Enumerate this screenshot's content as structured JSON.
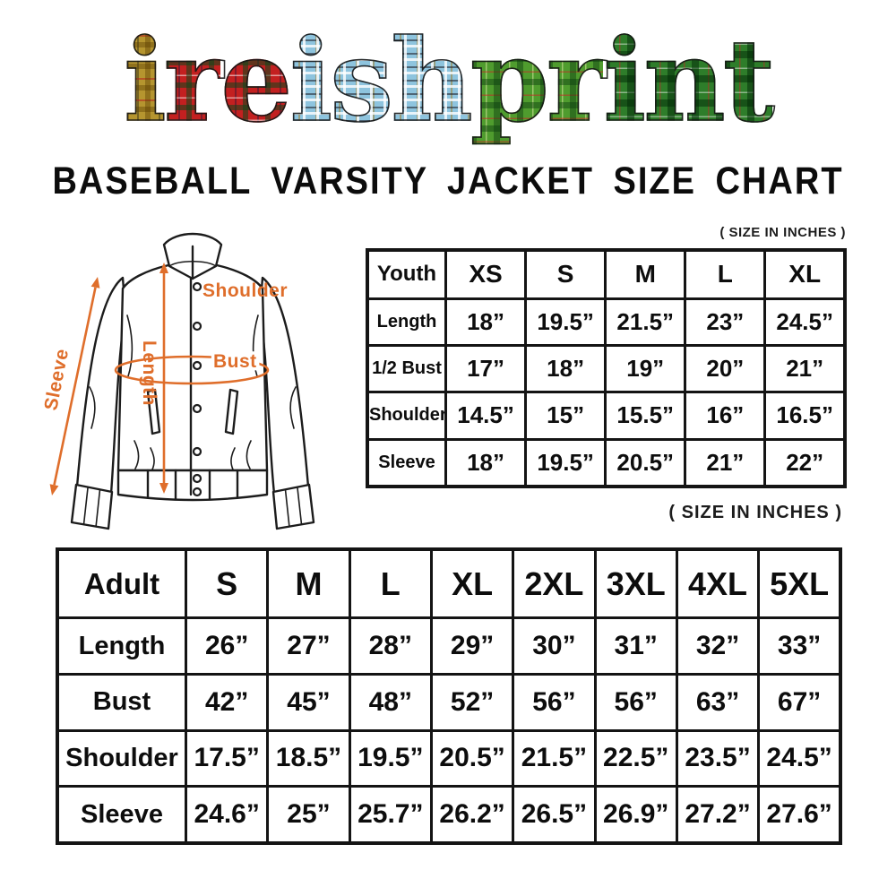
{
  "logo": {
    "text": "ireishprint",
    "letters": [
      {
        "char": "i",
        "tartan": "gold"
      },
      {
        "char": "r",
        "tartan": "red"
      },
      {
        "char": "e",
        "tartan": "red"
      },
      {
        "char": "i",
        "tartan": "blue"
      },
      {
        "char": "s",
        "tartan": "blue"
      },
      {
        "char": "h",
        "tartan": "blue"
      },
      {
        "char": "p",
        "tartan": "green"
      },
      {
        "char": "r",
        "tartan": "green"
      },
      {
        "char": "i",
        "tartan": "darkgreen"
      },
      {
        "char": "n",
        "tartan": "darkgreen"
      },
      {
        "char": "t",
        "tartan": "darkgreen"
      }
    ]
  },
  "title": "BASEBALL VARSITY JACKET SIZE CHART",
  "diagram": {
    "labels": {
      "sleeve": "Sleeve",
      "length": "Length",
      "shoulder": "Shoulder",
      "bust": "Bust"
    },
    "accent_color": "#df6e2b",
    "line_color": "#1c1c1c"
  },
  "chart_data": [
    {
      "type": "table",
      "name": "youth_size_chart",
      "size_note": "( SIZE IN INCHES )",
      "columns": [
        "Youth",
        "XS",
        "S",
        "M",
        "L",
        "XL"
      ],
      "rows": [
        [
          "Length",
          "18”",
          "19.5”",
          "21.5”",
          "23”",
          "24.5”"
        ],
        [
          "1/2 Bust",
          "17”",
          "18”",
          "19”",
          "20”",
          "21”"
        ],
        [
          "Shoulder",
          "14.5”",
          "15”",
          "15.5”",
          "16”",
          "16.5”"
        ],
        [
          "Sleeve",
          "18”",
          "19.5”",
          "20.5”",
          "21”",
          "22”"
        ]
      ]
    },
    {
      "type": "table",
      "name": "adult_size_chart",
      "size_note": "( SIZE IN INCHES )",
      "columns": [
        "Adult",
        "S",
        "M",
        "L",
        "XL",
        "2XL",
        "3XL",
        "4XL",
        "5XL"
      ],
      "rows": [
        [
          "Length",
          "26”",
          "27”",
          "28”",
          "29”",
          "30”",
          "31”",
          "32”",
          "33”"
        ],
        [
          "Bust",
          "42”",
          "45”",
          "48”",
          "52”",
          "56”",
          "56”",
          "63”",
          "67”"
        ],
        [
          "Shoulder",
          "17.5”",
          "18.5”",
          "19.5”",
          "20.5”",
          "21.5”",
          "22.5”",
          "23.5”",
          "24.5”"
        ],
        [
          "Sleeve",
          "24.6”",
          "25”",
          "25.7”",
          "26.2”",
          "26.5”",
          "26.9”",
          "27.2”",
          "27.6”"
        ]
      ]
    }
  ]
}
